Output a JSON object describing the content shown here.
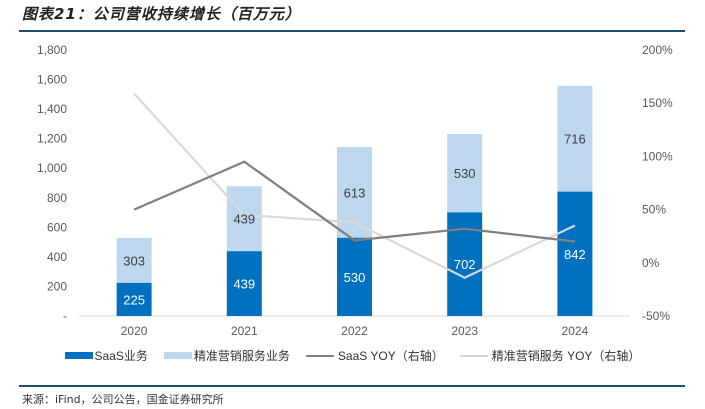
{
  "title": "图表21：公司营收持续增长（百万元）",
  "source": "来源：iFind，公司公告，国金证券研究所",
  "colors": {
    "saas": "#0070c0",
    "marketing": "#bdd7ee",
    "saas_yoy": "#7f7f7f",
    "marketing_yoy": "#d9d9d9",
    "rule": "#1f4e6e"
  },
  "legend": [
    {
      "label": "SaaS业务",
      "kind": "bar",
      "color": "#0070c0"
    },
    {
      "label": "精准营销服务业务",
      "kind": "bar",
      "color": "#bdd7ee"
    },
    {
      "label": "SaaS YOY（右轴）",
      "kind": "line",
      "color": "#7f7f7f"
    },
    {
      "label": "精准营销服务 YOY（右轴）",
      "kind": "line",
      "color": "#d9d9d9"
    }
  ],
  "chart_data": {
    "type": "bar",
    "stacked": true,
    "title": "公司营收持续增长（百万元）",
    "categories": [
      "2020",
      "2021",
      "2022",
      "2023",
      "2024"
    ],
    "series": [
      {
        "name": "SaaS业务",
        "type": "bar",
        "axis": "left",
        "values": [
          225,
          439,
          530,
          702,
          842
        ]
      },
      {
        "name": "精准营销服务业务",
        "type": "bar",
        "axis": "left",
        "values": [
          303,
          439,
          613,
          530,
          716
        ]
      },
      {
        "name": "SaaS YOY（右轴）",
        "type": "line",
        "axis": "right",
        "values": [
          50,
          95,
          21,
          32,
          20
        ]
      },
      {
        "name": "精准营销服务 YOY（右轴）",
        "type": "line",
        "axis": "right",
        "values": [
          159,
          45,
          38,
          -14,
          35
        ]
      }
    ],
    "left_axis": {
      "min": 0,
      "max": 1800,
      "ticks": [
        0,
        200,
        400,
        600,
        800,
        1000,
        1200,
        1400,
        1600,
        1800
      ],
      "tick_labels": [
        "-",
        "200",
        "400",
        "600",
        "800",
        "1,000",
        "1,200",
        "1,400",
        "1,600",
        "1,800"
      ]
    },
    "right_axis": {
      "min": -50,
      "max": 200,
      "ticks": [
        -50,
        0,
        50,
        100,
        150,
        200
      ],
      "tick_labels": [
        "-50%",
        "0%",
        "50%",
        "100%",
        "150%",
        "200%"
      ],
      "unit": "%"
    },
    "xlabel": "",
    "ylabel": "",
    "grid": false,
    "legend_position": "bottom"
  }
}
